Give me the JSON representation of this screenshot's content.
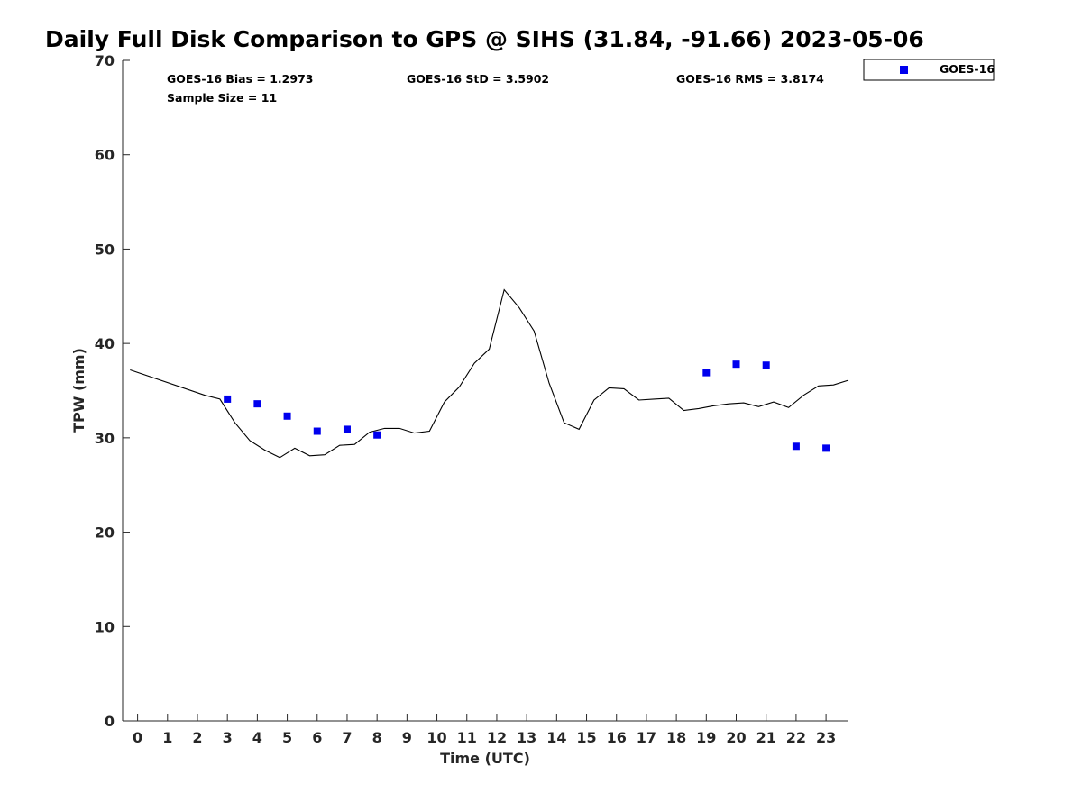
{
  "title": "Daily Full Disk Comparison to GPS @ SIHS (31.84, -91.66) 2023-05-06",
  "stats": {
    "bias": "GOES-16 Bias = 1.2973",
    "std": "GOES-16 StD = 3.5902",
    "rms": "GOES-16 RMS = 3.8174",
    "sample": "Sample Size = 11"
  },
  "colors": {
    "goes": "#0000ee",
    "gps": "#000000"
  },
  "chart_data": {
    "type": "scatter",
    "title": "Daily Full Disk Comparison to GPS @ SIHS (31.84, -91.66) 2023-05-06",
    "xlabel": "Time (UTC)",
    "ylabel": "TPW (mm)",
    "xlim": [
      -0.5,
      23.75
    ],
    "ylim": [
      0,
      70
    ],
    "xticks": [
      0,
      1,
      2,
      3,
      4,
      5,
      6,
      7,
      8,
      9,
      10,
      11,
      12,
      13,
      14,
      15,
      16,
      17,
      18,
      19,
      20,
      21,
      22,
      23
    ],
    "yticks": [
      0,
      10,
      20,
      30,
      40,
      50,
      60,
      70
    ],
    "grid": false,
    "legend_position": "top-right, outside plot",
    "series": [
      {
        "kind": "line",
        "x": [
          -0.25,
          2.25,
          2.75,
          3.25,
          3.75,
          4.25,
          4.75,
          5.25,
          5.75,
          6.25,
          6.75,
          7.25,
          7.75,
          8.25,
          8.75,
          9.25,
          9.75,
          10.25,
          10.75,
          11.25,
          11.75,
          12.25,
          12.75,
          13.25,
          13.75,
          14.25,
          14.75,
          15.25,
          15.75,
          16.25,
          16.75,
          17.25,
          17.75,
          18.25,
          18.75,
          19.25,
          19.75,
          20.25,
          20.75,
          21.25,
          21.75,
          22.25,
          22.75,
          23.25,
          23.75
        ],
        "values": [
          37.2,
          34.5,
          34.1,
          31.6,
          29.7,
          28.7,
          27.9,
          28.9,
          28.1,
          28.2,
          29.2,
          29.3,
          30.6,
          31.0,
          31.0,
          30.5,
          30.7,
          33.8,
          35.4,
          37.9,
          39.4,
          45.7,
          43.8,
          41.3,
          35.8,
          31.6,
          30.9,
          34.0,
          35.3,
          35.2,
          34.0,
          34.1,
          34.2,
          32.9,
          33.1,
          33.4,
          33.6,
          33.7,
          33.3,
          33.8,
          33.2,
          34.5,
          35.5,
          35.6,
          36.1
        ]
      },
      {
        "name": "GOES-16",
        "kind": "scatter",
        "x": [
          3,
          4,
          5,
          6,
          7,
          8,
          19,
          20,
          21,
          22,
          23
        ],
        "values": [
          34.1,
          33.6,
          32.3,
          30.7,
          30.9,
          30.3,
          36.9,
          37.8,
          37.7,
          29.1,
          28.9
        ]
      }
    ]
  }
}
